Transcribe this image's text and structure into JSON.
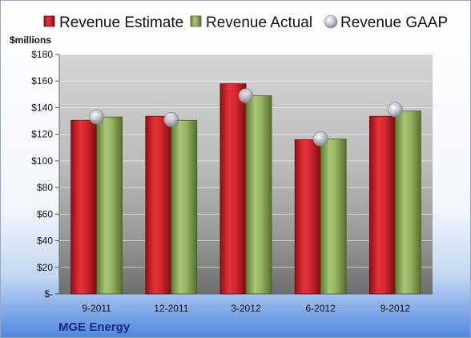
{
  "chart_data": {
    "type": "bar",
    "categories": [
      "9-2011",
      "12-2011",
      "3-2012",
      "6-2012",
      "9-2012"
    ],
    "series": [
      {
        "name": "Revenue Estimate",
        "values": [
          130.5,
          133.5,
          158,
          116,
          133.5
        ],
        "color": "#c8202a",
        "kind": "bar"
      },
      {
        "name": "Revenue Actual",
        "values": [
          133,
          130.5,
          149,
          116.5,
          137.5
        ],
        "color": "#8fae5a",
        "kind": "bar"
      },
      {
        "name": "Revenue GAAP",
        "values": [
          133,
          131,
          149,
          116.5,
          138.5
        ],
        "color": "#c9ccd6",
        "kind": "marker"
      }
    ],
    "ylabel": "$millions",
    "ylim": [
      0,
      180
    ],
    "yticks": [
      "$-",
      "$20",
      "$40",
      "$60",
      "$80",
      "$100",
      "$120",
      "$140",
      "$160",
      "$180"
    ],
    "grid": true,
    "legend": "top",
    "footer": "MGE Energy"
  }
}
